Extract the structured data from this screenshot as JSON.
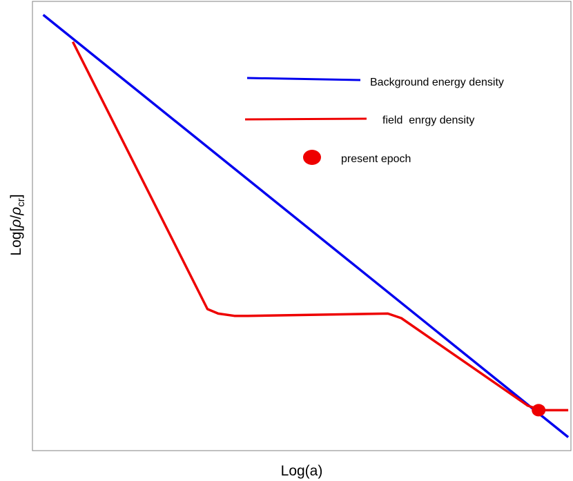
{
  "chart_data": {
    "type": "line",
    "title": "",
    "xlabel": "Log(a)",
    "ylabel_prefix": "Log[",
    "ylabel_rho": "ρ",
    "ylabel_slash": "/",
    "ylabel_sub": "cr",
    "ylabel_suffix": "]",
    "xlim": [
      0,
      10
    ],
    "ylim": [
      0,
      10
    ],
    "grid": false,
    "ticks": false,
    "legend_position": "upper-right",
    "series": [
      {
        "name": "Background energy density",
        "color": "#0000ee",
        "x": [
          0.2,
          9.95
        ],
        "y": [
          9.7,
          0.3
        ]
      },
      {
        "name": "field  enrgy density",
        "color": "#ee0000",
        "x": [
          0.75,
          3.25,
          3.45,
          3.75,
          4.0,
          6.6,
          6.85,
          9.2,
          9.45,
          9.95
        ],
        "y": [
          9.1,
          3.15,
          3.05,
          3.0,
          3.0,
          3.05,
          2.95,
          1.0,
          0.9,
          0.9
        ]
      }
    ],
    "markers": [
      {
        "name": "present epoch",
        "color": "#ee0000",
        "x": 9.4,
        "y": 0.9
      }
    ]
  }
}
